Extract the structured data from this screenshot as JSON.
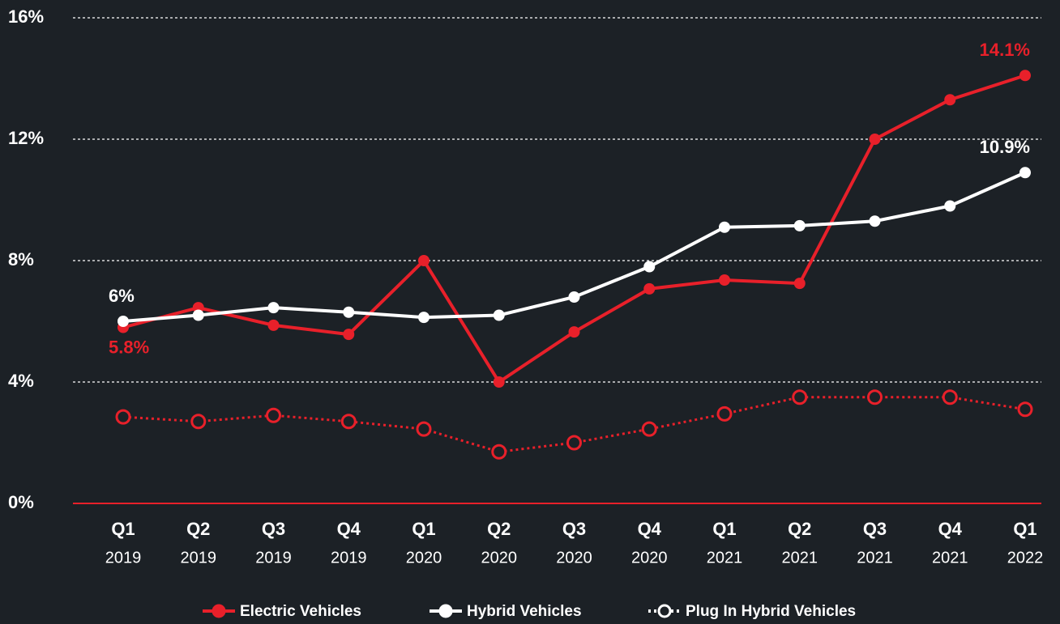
{
  "chart_data": {
    "type": "line",
    "categories": [
      [
        "Q1",
        "2019"
      ],
      [
        "Q2",
        "2019"
      ],
      [
        "Q3",
        "2019"
      ],
      [
        "Q4",
        "2019"
      ],
      [
        "Q1",
        "2020"
      ],
      [
        "Q2",
        "2020"
      ],
      [
        "Q3",
        "2020"
      ],
      [
        "Q4",
        "2020"
      ],
      [
        "Q1",
        "2021"
      ],
      [
        "Q2",
        "2021"
      ],
      [
        "Q3",
        "2021"
      ],
      [
        "Q4",
        "2021"
      ],
      [
        "Q1",
        "2022"
      ]
    ],
    "series": [
      {
        "name": "Electric Vehicles",
        "color": "#e8202a",
        "style": "solid",
        "values": [
          5.8,
          6.45,
          5.87,
          5.57,
          8.0,
          4.0,
          5.65,
          7.07,
          7.36,
          7.25,
          12.0,
          13.3,
          14.1
        ],
        "value_labels": [
          "5.8%",
          null,
          null,
          null,
          null,
          null,
          null,
          null,
          null,
          null,
          null,
          null,
          "14.1%"
        ]
      },
      {
        "name": "Hybrid Vehicles",
        "color": "#ffffff",
        "style": "solid",
        "values": [
          6,
          6.2,
          6.45,
          6.3,
          6.13,
          6.2,
          6.8,
          7.8,
          9.1,
          9.15,
          9.3,
          9.8,
          10.9
        ],
        "value_labels": [
          "6%",
          null,
          null,
          null,
          null,
          null,
          null,
          null,
          null,
          null,
          null,
          null,
          "10.9%"
        ]
      },
      {
        "name": "Plug In Hybrid Vehicles",
        "color": "#e8202a",
        "style": "dotted",
        "values": [
          2.85,
          2.7,
          2.9,
          2.7,
          2.45,
          1.7,
          2.0,
          2.45,
          2.95,
          3.5,
          3.5,
          3.5,
          3.1
        ]
      }
    ],
    "ylim": [
      0,
      16
    ],
    "yticks": [
      {
        "value": 0,
        "label": "0%"
      },
      {
        "value": 4,
        "label": "4%"
      },
      {
        "value": 8,
        "label": "8%"
      },
      {
        "value": 12,
        "label": "12%"
      },
      {
        "value": 16,
        "label": "16%"
      }
    ],
    "grid": true,
    "legend": "bottom"
  }
}
